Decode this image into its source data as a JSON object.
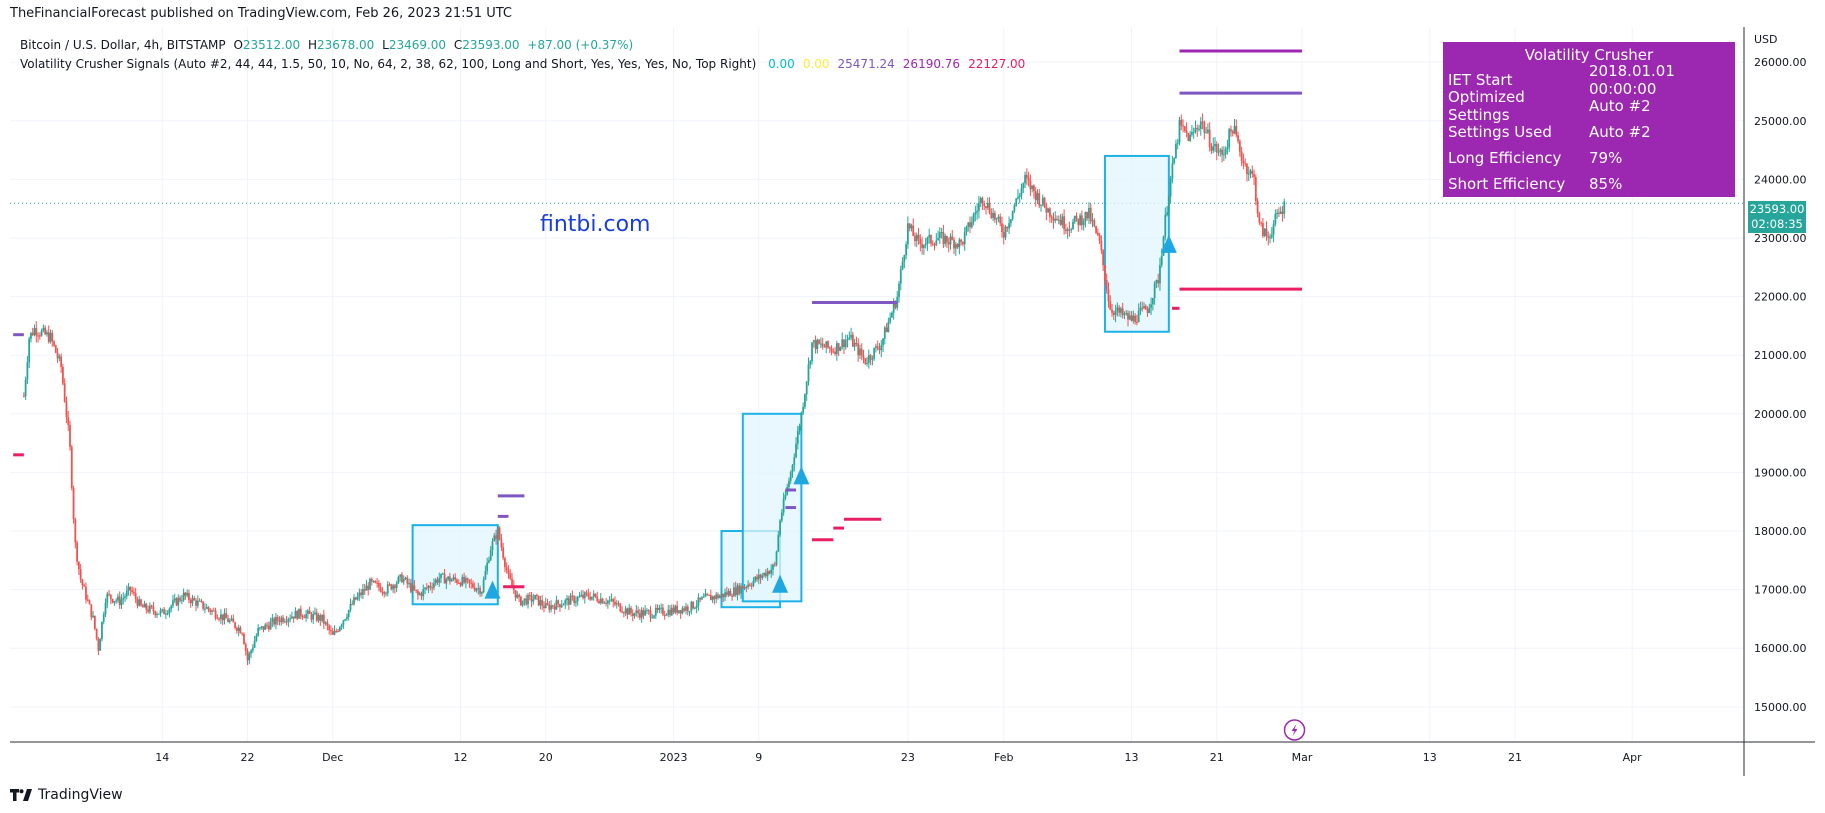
{
  "header": {
    "published": "TheFinancialForecast published on TradingView.com, Feb 26, 2023 21:51 UTC"
  },
  "legend": {
    "symbol": "Bitcoin / U.S. Dollar, 4h, BITSTAMP",
    "o_label": "O",
    "o": "23512.00",
    "h_label": "H",
    "h": "23678.00",
    "l_label": "L",
    "l": "23469.00",
    "c_label": "C",
    "c": "23593.00",
    "change": "+87.00 (+0.37%)",
    "indicator": "Volatility Crusher Signals (Auto #2, 44, 44, 1.5, 50, 10, No, 64, 2, 38, 62, 100, Long and Short, Yes, Yes, Yes, No, Top Right)",
    "ind_values": [
      {
        "text": "0.00",
        "color": "#00bcd4"
      },
      {
        "text": "0.00",
        "color": "#ffeb3b"
      },
      {
        "text": "25471.24",
        "color": "#7e57c2"
      },
      {
        "text": "26190.76",
        "color": "#9c27b0"
      },
      {
        "text": "22127.00",
        "color": "#e91e63"
      }
    ]
  },
  "watermark": "fintbi.com",
  "info_table": {
    "title": "Volatility Crusher",
    "rows": [
      {
        "k": "IET Start",
        "v": "2018.01.01 00:00:00"
      },
      {
        "k": "Optimized Settings",
        "v": "Auto #2"
      },
      {
        "k": "Settings Used",
        "v": "Auto #2"
      },
      {
        "k": "Long Efficiency",
        "v": "79%"
      },
      {
        "k": "Short Efficiency",
        "v": "85%"
      }
    ]
  },
  "price_badge": {
    "price": "23593.00",
    "countdown": "02:08:35"
  },
  "footer": {
    "brand": "TradingView"
  },
  "colors": {
    "up": "#26a69a",
    "down": "#ef5350",
    "box_border": "#1cb2e8",
    "box_fill": "#e1f5fe",
    "purple": "#9c27b0",
    "violet": "#7e57c2",
    "pink": "#e91e63",
    "grid": "#f0f3fa"
  },
  "chart_data": {
    "type": "candlestick",
    "symbol": "Bitcoin / U.S. Dollar",
    "timeframe": "4h",
    "currency": "USD",
    "ylim": [
      14400,
      26600
    ],
    "y_ticks": [
      15000,
      16000,
      17000,
      18000,
      19000,
      20000,
      21000,
      22000,
      23000,
      24000,
      25000,
      26000
    ],
    "y_tick_labels": [
      "15000.00",
      "16000.00",
      "17000.00",
      "18000.00",
      "19000.00",
      "20000.00",
      "21000.00",
      "22000.00",
      "23000.00",
      "24000.00",
      "25000.00",
      "26000.00"
    ],
    "x_ticks": [
      {
        "label": "14",
        "day": 14
      },
      {
        "label": "22",
        "day": 22
      },
      {
        "label": "Dec",
        "day": 30
      },
      {
        "label": "12",
        "day": 42
      },
      {
        "label": "20",
        "day": 50
      },
      {
        "label": "2023",
        "day": 62
      },
      {
        "label": "9",
        "day": 70
      },
      {
        "label": "23",
        "day": 84
      },
      {
        "label": "Feb",
        "day": 93
      },
      {
        "label": "13",
        "day": 105
      },
      {
        "label": "21",
        "day": 113
      },
      {
        "label": "Mar",
        "day": 121
      },
      {
        "label": "13",
        "day": 133
      },
      {
        "label": "21",
        "day": 141
      },
      {
        "label": "Apr",
        "day": 152
      }
    ],
    "last_price": 23593,
    "path": [
      [
        1,
        20300
      ],
      [
        1.5,
        21300
      ],
      [
        2,
        21450
      ],
      [
        3.5,
        21300
      ],
      [
        4.5,
        20800
      ],
      [
        5.3,
        19500
      ],
      [
        5.8,
        17800
      ],
      [
        6.3,
        17200
      ],
      [
        7.5,
        16500
      ],
      [
        8,
        16000
      ],
      [
        8.7,
        16900
      ],
      [
        10,
        16800
      ],
      [
        11,
        17000
      ],
      [
        12,
        16700
      ],
      [
        14,
        16600
      ],
      [
        16,
        16900
      ],
      [
        18,
        16700
      ],
      [
        20,
        16500
      ],
      [
        21.5,
        16300
      ],
      [
        22,
        15800
      ],
      [
        23,
        16300
      ],
      [
        25,
        16500
      ],
      [
        27,
        16600
      ],
      [
        29,
        16500
      ],
      [
        30,
        16200
      ],
      [
        32,
        16800
      ],
      [
        33.5,
        17100
      ],
      [
        35,
        17000
      ],
      [
        36.5,
        17200
      ],
      [
        38,
        16900
      ],
      [
        40,
        17200
      ],
      [
        42,
        17150
      ],
      [
        44,
        17000
      ],
      [
        44.8,
        17700
      ],
      [
        45.5,
        18000
      ],
      [
        46.5,
        17200
      ],
      [
        47.5,
        16800
      ],
      [
        49,
        16850
      ],
      [
        50,
        16700
      ],
      [
        52,
        16800
      ],
      [
        54,
        16900
      ],
      [
        56,
        16800
      ],
      [
        58,
        16600
      ],
      [
        60,
        16600
      ],
      [
        62,
        16650
      ],
      [
        63.5,
        16700
      ],
      [
        65,
        16850
      ],
      [
        66.5,
        16900
      ],
      [
        68,
        17000
      ],
      [
        70,
        17200
      ],
      [
        71.5,
        17400
      ],
      [
        72,
        18200
      ],
      [
        73,
        19000
      ],
      [
        74,
        20000
      ],
      [
        75,
        21200
      ],
      [
        77,
        21100
      ],
      [
        78.5,
        21300
      ],
      [
        80,
        20900
      ],
      [
        81.5,
        21200
      ],
      [
        83,
        22000
      ],
      [
        84,
        23200
      ],
      [
        85,
        22900
      ],
      [
        87,
        23000
      ],
      [
        89,
        22900
      ],
      [
        91,
        23700
      ],
      [
        93,
        23100
      ],
      [
        95,
        24000
      ],
      [
        97,
        23500
      ],
      [
        99,
        23200
      ],
      [
        101,
        23400
      ],
      [
        102,
        22900
      ],
      [
        103,
        21800
      ],
      [
        105,
        21600
      ],
      [
        106.5,
        21800
      ],
      [
        107.5,
        22300
      ],
      [
        108.5,
        23800
      ],
      [
        109.5,
        24900
      ],
      [
        110.5,
        24700
      ],
      [
        111.5,
        25000
      ],
      [
        112.5,
        24600
      ],
      [
        113.5,
        24400
      ],
      [
        114.5,
        24900
      ],
      [
        115.5,
        24300
      ],
      [
        116.5,
        24000
      ],
      [
        117,
        23200
      ],
      [
        117.8,
        23000
      ],
      [
        118.5,
        23300
      ],
      [
        119.5,
        23600
      ]
    ],
    "boxes": [
      {
        "from_day": 37.5,
        "to_day": 45.5,
        "top": 18100,
        "bottom": 16750
      },
      {
        "from_day": 66.5,
        "to_day": 72,
        "top": 18000,
        "bottom": 16700
      },
      {
        "from_day": 68.5,
        "to_day": 74,
        "top": 20000,
        "bottom": 16800
      },
      {
        "from_day": 102.5,
        "to_day": 108.5,
        "top": 24400,
        "bottom": 21400
      }
    ],
    "long_signals": [
      {
        "day": 45,
        "price": 17000
      },
      {
        "day": 72,
        "price": 17100
      },
      {
        "day": 74,
        "price": 18950
      },
      {
        "day": 108.5,
        "price": 22900
      }
    ],
    "levels": [
      {
        "from_day": 45.5,
        "to_day": 48,
        "value": 18600,
        "color": "violet"
      },
      {
        "from_day": 45.5,
        "to_day": 46.5,
        "value": 18250,
        "color": "violet"
      },
      {
        "from_day": 46,
        "to_day": 48,
        "value": 17050,
        "color": "pink"
      },
      {
        "from_day": 75,
        "to_day": 83,
        "value": 21900,
        "color": "violet"
      },
      {
        "from_day": 72.5,
        "to_day": 73.5,
        "value": 18700,
        "color": "violet"
      },
      {
        "from_day": 72.5,
        "to_day": 73.5,
        "value": 18400,
        "color": "violet"
      },
      {
        "from_day": 75,
        "to_day": 77,
        "value": 17850,
        "color": "pink"
      },
      {
        "from_day": 77,
        "to_day": 78,
        "value": 18050,
        "color": "pink"
      },
      {
        "from_day": 78,
        "to_day": 81.5,
        "value": 18200,
        "color": "pink"
      },
      {
        "from_day": 109.5,
        "to_day": 121,
        "value": 26190.76,
        "color": "purple"
      },
      {
        "from_day": 109.5,
        "to_day": 121,
        "value": 25471.24,
        "color": "violet"
      },
      {
        "from_day": 109.5,
        "to_day": 121,
        "value": 22127.0,
        "color": "pink"
      },
      {
        "from_day": 108.8,
        "to_day": 109.5,
        "value": 21800,
        "color": "pink"
      },
      {
        "from_day": 0,
        "to_day": 1,
        "value": 21350,
        "color": "violet"
      },
      {
        "from_day": 0,
        "to_day": 1,
        "value": 19300,
        "color": "pink"
      }
    ]
  }
}
